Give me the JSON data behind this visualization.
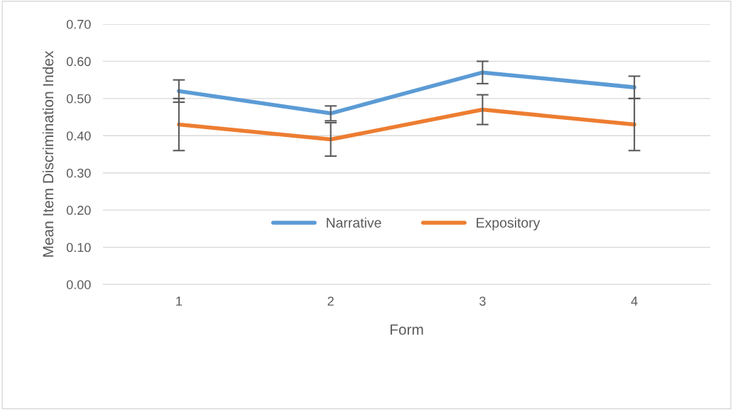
{
  "chart_data": {
    "type": "line",
    "xlabel": "Form",
    "ylabel": "Mean Item Discrimination Index",
    "categories": [
      "1",
      "2",
      "3",
      "4"
    ],
    "series": [
      {
        "name": "Narrative",
        "color": "#5b9bd5",
        "values": [
          0.52,
          0.46,
          0.57,
          0.53
        ],
        "errors": [
          0.03,
          0.02,
          0.03,
          0.03
        ]
      },
      {
        "name": "Expository",
        "color": "#ed7d31",
        "values": [
          0.43,
          0.39,
          0.47,
          0.43
        ],
        "errors": [
          0.07,
          0.045,
          0.04,
          0.07
        ]
      }
    ],
    "ylim": [
      0,
      0.7
    ],
    "yticks": [
      {
        "value": 0,
        "label": "0.00"
      },
      {
        "value": 0.1,
        "label": "0.10"
      },
      {
        "value": 0.2,
        "label": "0.20"
      },
      {
        "value": 0.3,
        "label": "0.30"
      },
      {
        "value": 0.4,
        "label": "0.40"
      },
      {
        "value": 0.5,
        "label": "0.50"
      },
      {
        "value": 0.6,
        "label": "0.60"
      },
      {
        "value": 0.7,
        "label": "0.70"
      }
    ],
    "grid": "y",
    "legend": "bottom",
    "marker": "none",
    "line_style": "solid"
  }
}
